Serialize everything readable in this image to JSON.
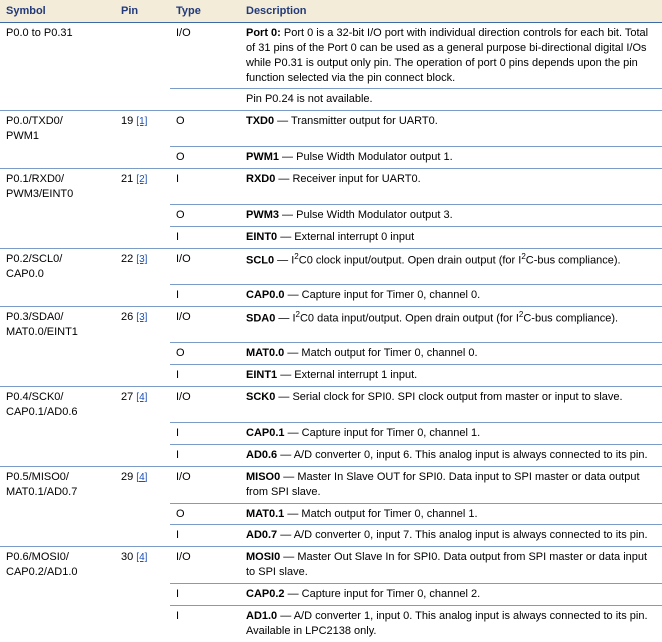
{
  "headers": {
    "symbol": "Symbol",
    "pin": "Pin",
    "type": "Type",
    "description": "Description"
  },
  "colors": {
    "header_bg": "#f2ecd9",
    "header_text": "#233a7a",
    "rule": "#7a9cc6",
    "link": "#1a4fb3"
  },
  "groups": [
    {
      "symbol": "P0.0 to P0.31",
      "pin": "",
      "ref": "",
      "rows": [
        {
          "type": "I/O",
          "desc_html": "<b>Port 0:</b> Port 0 is a 32-bit I/O port with individual direction controls for each bit. Total of 31 pins of the Port 0 can be used as a general purpose bi-directional digital I/Os while P0.31 is output only pin. The operation of port 0 pins depends upon the pin function selected via the pin connect block."
        },
        {
          "type": "",
          "desc_html": "Pin P0.24 is not available."
        }
      ]
    },
    {
      "symbol": "P0.0/TXD0/\nPWM1",
      "pin": "19",
      "ref": "[1]",
      "rows": [
        {
          "type": "O",
          "desc_html": "<b>TXD0</b> — Transmitter output for UART0."
        },
        {
          "type": "O",
          "desc_html": "<b>PWM1</b> — Pulse Width Modulator output 1."
        }
      ]
    },
    {
      "symbol": "P0.1/RXD0/\nPWM3/EINT0",
      "pin": "21",
      "ref": "[2]",
      "rows": [
        {
          "type": "I",
          "desc_html": "<b>RXD0</b> — Receiver input for UART0."
        },
        {
          "type": "O",
          "desc_html": "<b>PWM3</b> — Pulse Width Modulator output 3."
        },
        {
          "type": "I",
          "desc_html": "<b>EINT0</b> — External interrupt 0 input"
        }
      ]
    },
    {
      "symbol": "P0.2/SCL0/\nCAP0.0",
      "pin": "22",
      "ref": "[3]",
      "rows": [
        {
          "type": "I/O",
          "desc_html": "<b>SCL0</b> — I<sup class='sq'>2</sup>C0 clock input/output. Open drain output (for I<sup class='sq'>2</sup>C-bus compliance)."
        },
        {
          "type": "I",
          "desc_html": "<b>CAP0.0</b> — Capture input for Timer 0, channel 0."
        }
      ]
    },
    {
      "symbol": "P0.3/SDA0/\nMAT0.0/EINT1",
      "pin": "26",
      "ref": "[3]",
      "rows": [
        {
          "type": "I/O",
          "desc_html": "<b>SDA0</b> — I<sup class='sq'>2</sup>C0 data input/output. Open drain output (for I<sup class='sq'>2</sup>C-bus compliance)."
        },
        {
          "type": "O",
          "desc_html": "<b>MAT0.0</b> — Match output for Timer 0, channel 0."
        },
        {
          "type": "I",
          "desc_html": "<b>EINT1</b> — External interrupt 1 input."
        }
      ]
    },
    {
      "symbol": "P0.4/SCK0/\nCAP0.1/AD0.6",
      "pin": "27",
      "ref": "[4]",
      "rows": [
        {
          "type": "I/O",
          "desc_html": "<b>SCK0</b> — Serial clock for SPI0. SPI clock output from master or input to slave."
        },
        {
          "type": "I",
          "desc_html": "<b>CAP0.1</b> — Capture input for Timer 0, channel 1."
        },
        {
          "type": "I",
          "desc_html": "<b>AD0.6</b> — A/D converter 0, input 6. This analog input is always connected to its pin."
        }
      ]
    },
    {
      "symbol": "P0.5/MISO0/\nMAT0.1/AD0.7",
      "pin": "29",
      "ref": "[4]",
      "rows": [
        {
          "type": "I/O",
          "desc_html": "<b>MISO0</b> — Master In Slave OUT for SPI0. Data input to SPI master or data output from SPI slave."
        },
        {
          "type": "O",
          "desc_html": "<b>MAT0.1</b> — Match output for Timer 0, channel 1."
        },
        {
          "type": "I",
          "desc_html": "<b>AD0.7</b> — A/D converter 0, input 7. This analog input is always connected to its pin."
        }
      ]
    },
    {
      "symbol": "P0.6/MOSI0/\nCAP0.2/AD1.0",
      "pin": "30",
      "ref": "[4]",
      "rows": [
        {
          "type": "I/O",
          "desc_html": "<b>MOSI0</b> — Master Out Slave In for SPI0. Data output from SPI master or data input to SPI slave."
        },
        {
          "type": "I",
          "desc_html": "<b>CAP0.2</b> — Capture input for Timer 0, channel 2."
        },
        {
          "type": "I",
          "desc_html": "<b>AD1.0</b> — A/D converter 1, input 0. This analog input is always connected to its pin. Available in LPC2138 only."
        }
      ]
    }
  ]
}
